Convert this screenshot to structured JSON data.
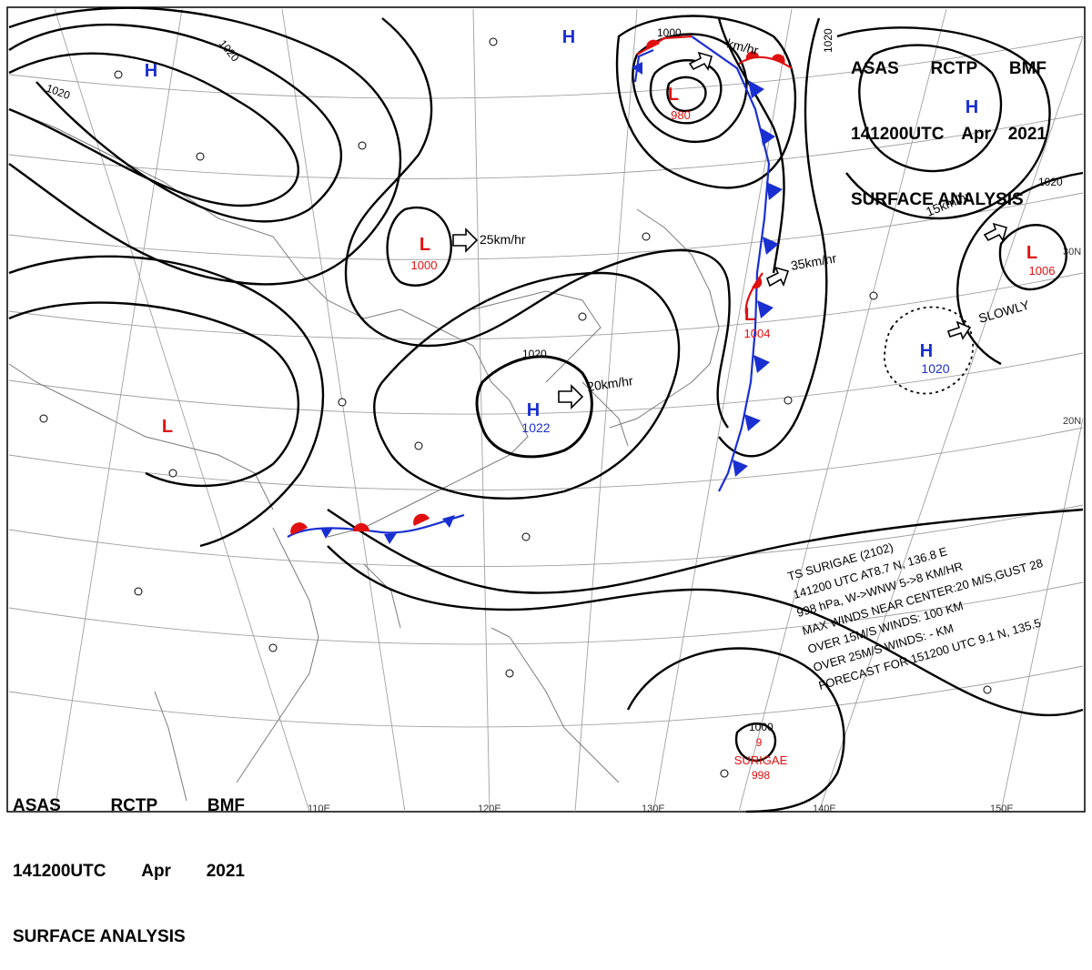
{
  "header": {
    "line1": [
      "ASAS",
      "RCTP",
      "BMF"
    ],
    "line2": [
      "141200UTC",
      "Apr",
      "2021"
    ],
    "line3": "SURFACE ANALYSIS"
  },
  "centers": [
    {
      "type": "H",
      "pressure": ""
    },
    {
      "type": "H",
      "pressure": ""
    },
    {
      "type": "H",
      "pressure": ""
    },
    {
      "type": "L",
      "pressure": "980"
    },
    {
      "type": "L",
      "pressure": "1000"
    },
    {
      "type": "L",
      "pressure": "1004"
    },
    {
      "type": "L",
      "pressure": "1006"
    },
    {
      "type": "L",
      "pressure": ""
    },
    {
      "type": "H",
      "pressure": "1022"
    },
    {
      "type": "H",
      "pressure": "1020"
    }
  ],
  "movement_labels": [
    "25km/hr",
    "35km/hr",
    "20km/hr",
    "SLOWLY",
    "15km/hr",
    "km/hr"
  ],
  "isobar_labels": [
    "1020",
    "1020",
    "1020",
    "1000",
    "1020",
    "1020",
    "1000"
  ],
  "lat_labels": [
    "30N",
    "20N"
  ],
  "lon_labels": [
    "110E",
    "120E",
    "130E",
    "140E",
    "150E"
  ],
  "typhoon": {
    "name": "SURIGAE",
    "center_pressure": "998",
    "center_number": "9",
    "lines": [
      "TS  SURIGAE  (2102)",
      "141200 UTC  AT8.7 N, 136.8 E",
      "998 hPa, W->WNW  5->8 KM/HR",
      "MAX WINDS NEAR CENTER:20 M/S,GUST 28",
      "OVER 15M/S WINDS: 100 KM",
      "OVER 25M/S WINDS: - KM",
      "FORECAST FOR 151200 UTC 9.1 N, 135.5"
    ]
  },
  "colors": {
    "high": "#1a2fd0",
    "low": "#e01010",
    "cold_front": "#1a2fd0",
    "warm_front": "#e01010",
    "isobar": "#000000",
    "grid": "#9a9a9a",
    "coast": "#808080"
  }
}
